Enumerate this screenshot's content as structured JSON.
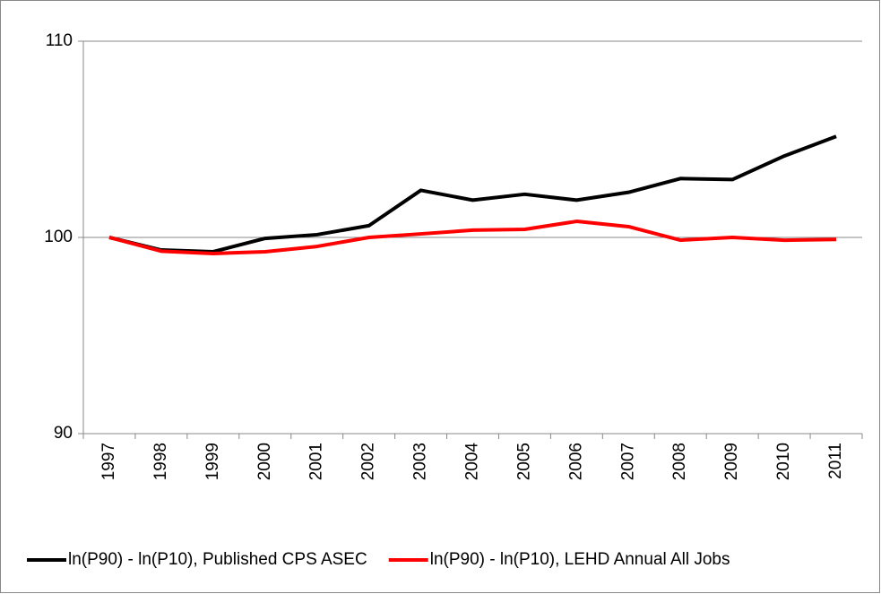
{
  "chart_data": {
    "type": "line",
    "categories": [
      "1997",
      "1998",
      "1999",
      "2000",
      "2001",
      "2002",
      "2003",
      "2004",
      "2005",
      "2006",
      "2007",
      "2008",
      "2009",
      "2010",
      "2011"
    ],
    "series": [
      {
        "name": "ln(P90) - ln(P10), Published CPS ASEC",
        "color": "#000000",
        "values": [
          100,
          99.36,
          99.27,
          99.95,
          100.14,
          100.6,
          102.4,
          101.9,
          102.2,
          101.9,
          102.3,
          103.0,
          102.95,
          104.15,
          105.15
        ]
      },
      {
        "name": "ln(P90) - ln(P10), LEHD Annual All Jobs",
        "color": "#ff0000",
        "values": [
          100,
          99.3,
          99.18,
          99.27,
          99.54,
          100,
          100.18,
          100.37,
          100.41,
          100.82,
          100.55,
          99.86,
          100,
          99.86,
          99.9
        ]
      }
    ],
    "ylim": [
      90,
      110
    ],
    "yticks": [
      90,
      100,
      110
    ],
    "grid": true,
    "legend": "bottom"
  }
}
